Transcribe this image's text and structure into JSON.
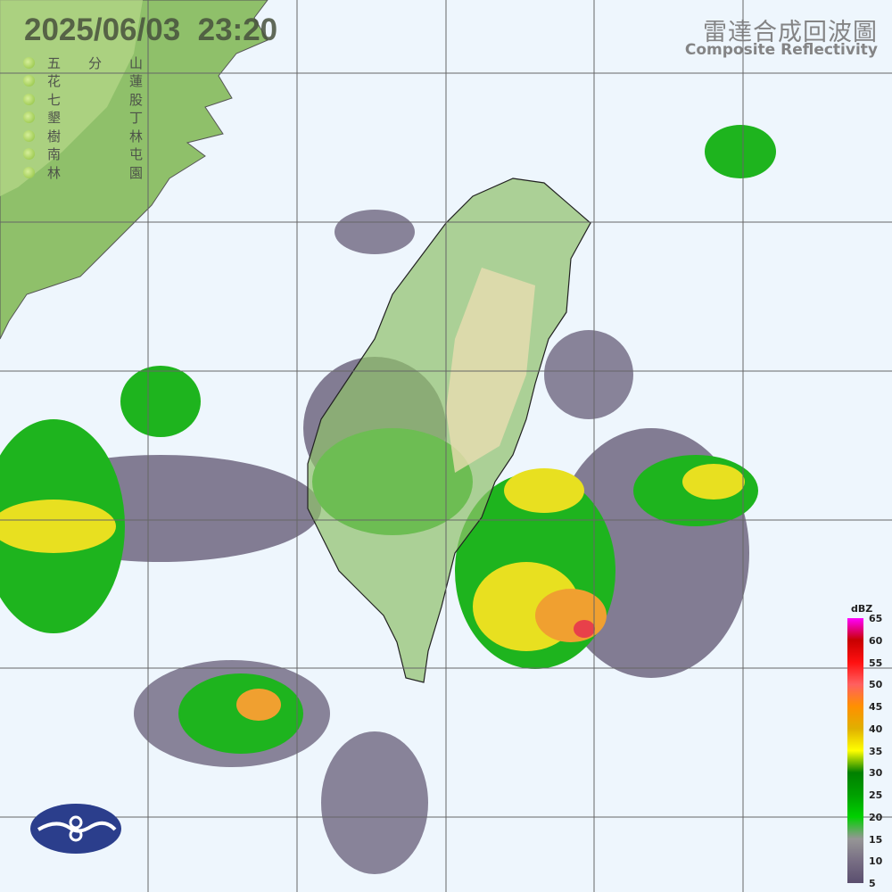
{
  "header": {
    "timestamp": "2025/06/03  23:20",
    "title_zh": "雷達合成回波圖",
    "title_en": "Composite Reflectivity"
  },
  "stations": [
    {
      "c1": "五",
      "c2": "分",
      "c3": "山"
    },
    {
      "c1": "花",
      "c2": "",
      "c3": "蓮"
    },
    {
      "c1": "七",
      "c2": "",
      "c3": "股"
    },
    {
      "c1": "墾",
      "c2": "",
      "c3": "丁"
    },
    {
      "c1": "樹",
      "c2": "",
      "c3": "林"
    },
    {
      "c1": "南",
      "c2": "",
      "c3": "屯"
    },
    {
      "c1": "林",
      "c2": "",
      "c3": "園"
    }
  ],
  "colorbar": {
    "unit": "dBZ",
    "ticks": [
      "65",
      "60",
      "55",
      "50",
      "45",
      "40",
      "35",
      "30",
      "25",
      "20",
      "15",
      "10",
      "5"
    ],
    "colors": {
      "65": "#ff00ff",
      "60": "#c80000",
      "55": "#ff1010",
      "50": "#ff6060",
      "45": "#ff9000",
      "40": "#e0b000",
      "35": "#ffff00",
      "30": "#008000",
      "25": "#00a000",
      "20": "#00d000",
      "15": "#969696",
      "10": "#786e84",
      "5": "#5a4e6e"
    }
  },
  "colors": {
    "ocean": "#eef6fd",
    "land": "#8fc06a",
    "echo_low": "#6e6680",
    "echo_green": "#1eb41e",
    "echo_yellow": "#e8e020",
    "echo_orange": "#f0a030",
    "echo_red": "#e8404a"
  }
}
